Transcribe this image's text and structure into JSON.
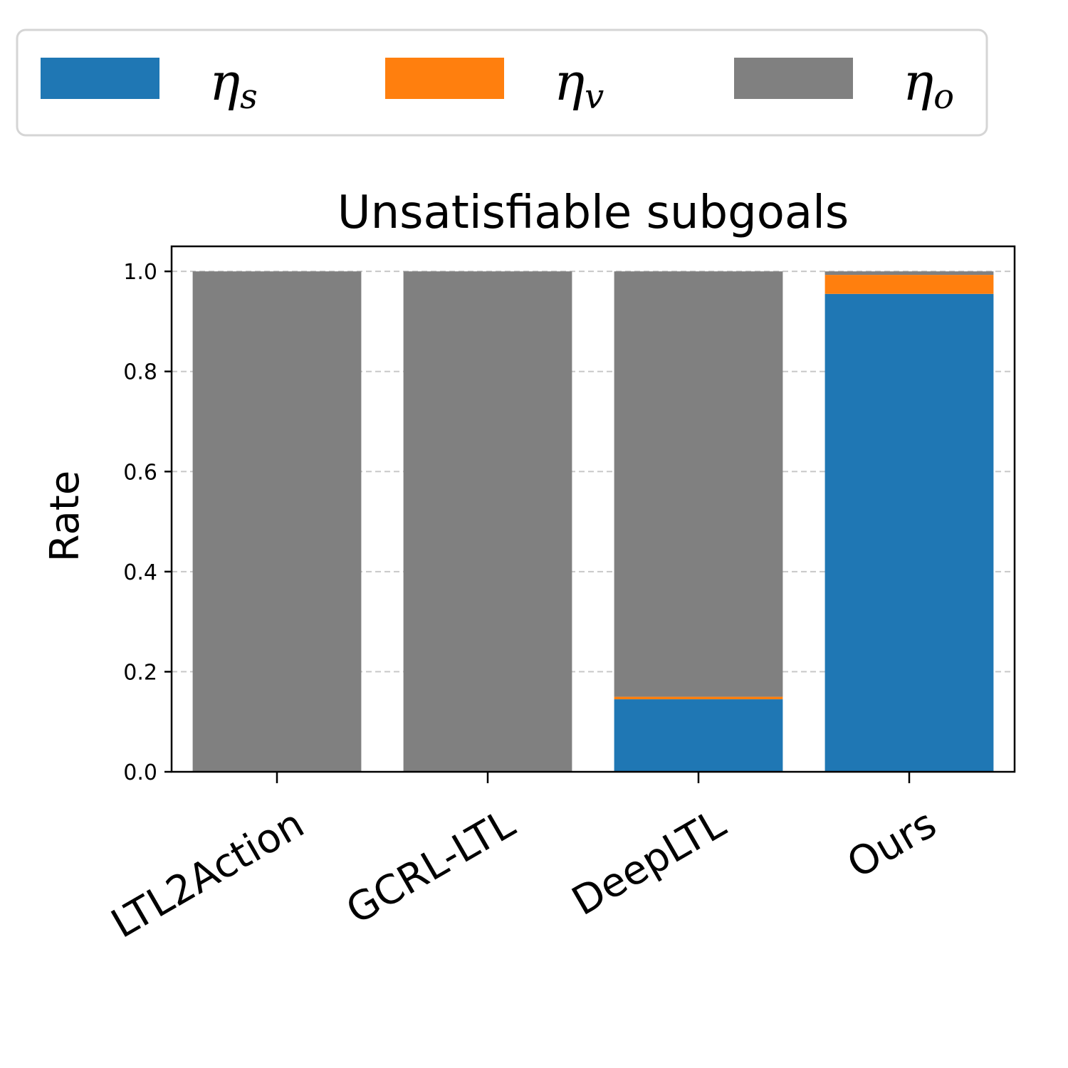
{
  "chart_data": {
    "type": "bar",
    "stacked": true,
    "title": "Unsatisfiable subgoals",
    "xlabel": "",
    "ylabel": "Rate",
    "ylim": [
      0,
      1.05
    ],
    "yticks": [
      0.0,
      0.2,
      0.4,
      0.6,
      0.8,
      1.0
    ],
    "ytick_labels": [
      "0.0",
      "0.2",
      "0.4",
      "0.6",
      "0.8",
      "1.0"
    ],
    "grid": "y-dashed",
    "legend_position": "top",
    "categories": [
      "LTL2Action",
      "GCRL-LTL",
      "DeepLTL",
      "Ours"
    ],
    "series": [
      {
        "name": "η_s",
        "symbol": "η",
        "sub": "s",
        "color": "#1f77b4",
        "values": [
          0.0,
          0.0,
          0.145,
          0.955
        ]
      },
      {
        "name": "η_v",
        "symbol": "η",
        "sub": "v",
        "color": "#ff7f0e",
        "values": [
          0.0,
          0.0,
          0.005,
          0.038
        ]
      },
      {
        "name": "η_o",
        "symbol": "η",
        "sub": "o",
        "color": "#808080",
        "values": [
          1.0,
          1.0,
          0.85,
          0.007
        ]
      }
    ]
  }
}
